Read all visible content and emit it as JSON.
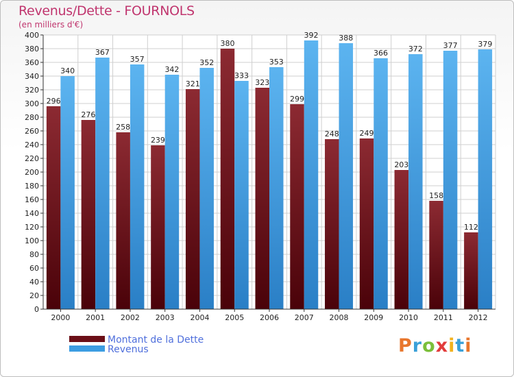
{
  "header": {
    "title": "Revenus/Dette - FOURNOLS",
    "subtitle": "(en milliers d'€)"
  },
  "logo": {
    "text": "Proxiti",
    "colors": [
      "#e8762d",
      "#3aa0d8",
      "#7bbf3a",
      "#e23b3b",
      "#f2b21e",
      "#3aa0d8",
      "#e8762d"
    ]
  },
  "colors": {
    "dette": "#6b0f17",
    "revenus": "#3d9de2",
    "grid": "#cfcfcf",
    "axis": "#333333"
  },
  "chart_data": {
    "type": "bar",
    "title": "Revenus/Dette - FOURNOLS",
    "subtitle": "(en milliers d'€)",
    "categories": [
      "2000",
      "2001",
      "2002",
      "2003",
      "2004",
      "2005",
      "2006",
      "2007",
      "2008",
      "2009",
      "2010",
      "2011",
      "2012"
    ],
    "series": [
      {
        "name": "Montant de la Dette",
        "values": [
          296,
          276,
          258,
          239,
          321,
          380,
          323,
          299,
          248,
          249,
          203,
          158,
          112
        ]
      },
      {
        "name": "Revenus",
        "values": [
          340,
          367,
          357,
          342,
          352,
          333,
          353,
          392,
          388,
          366,
          372,
          377,
          379
        ]
      }
    ],
    "ylim": [
      0,
      400
    ],
    "ytick_step": 20,
    "grid": true,
    "legend_position": "bottom-left"
  }
}
